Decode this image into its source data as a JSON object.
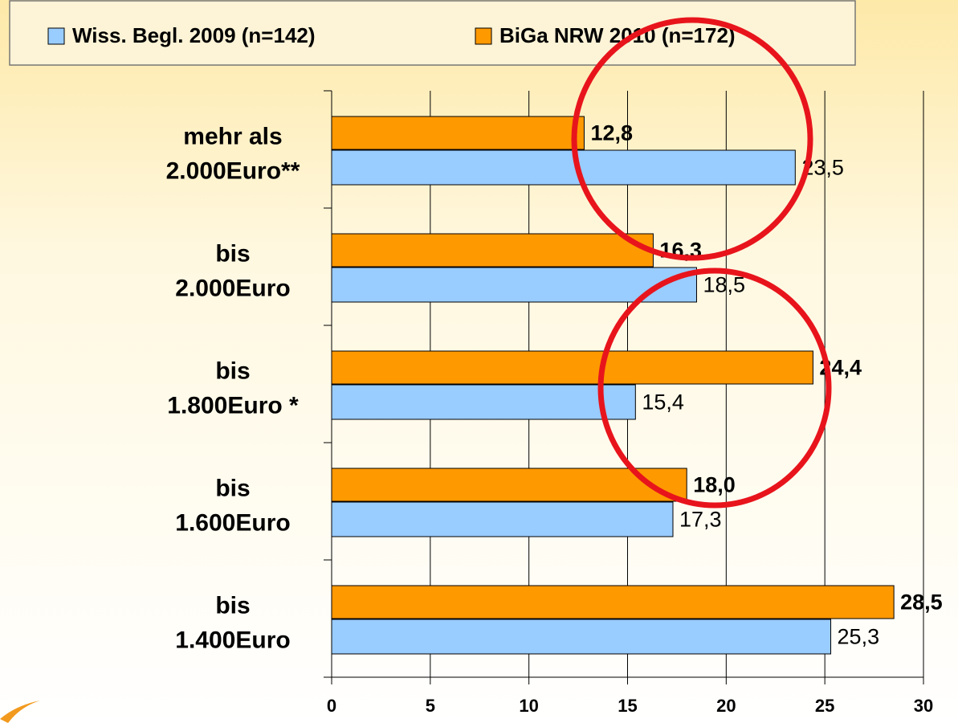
{
  "chart_data": {
    "type": "hbar",
    "categories": [
      [
        "mehr als",
        "2.000Euro**"
      ],
      [
        "bis",
        "2.000Euro"
      ],
      [
        "bis",
        "1.800Euro *"
      ],
      [
        "bis",
        "1.600Euro"
      ],
      [
        "bis",
        "1.400Euro"
      ]
    ],
    "series": [
      {
        "name": "Wiss. Begl. 2009 (n=142)",
        "color": "#99ccff",
        "values": [
          23.5,
          18.5,
          15.4,
          17.3,
          25.3
        ],
        "value_labels": [
          "23,5",
          "18,5",
          "15,4",
          "17,3",
          "25,3"
        ]
      },
      {
        "name": "BiGa NRW 2010 (n=172)",
        "color": "#ff9900",
        "values": [
          12.8,
          16.3,
          24.4,
          18.0,
          28.5
        ],
        "value_labels": [
          "12,8",
          "16,3",
          "24,4",
          "18,0",
          "28,5"
        ]
      }
    ],
    "xlim": [
      0,
      30
    ],
    "xticks": [
      0,
      5,
      10,
      15,
      20,
      25,
      30
    ],
    "grid": true
  }
}
